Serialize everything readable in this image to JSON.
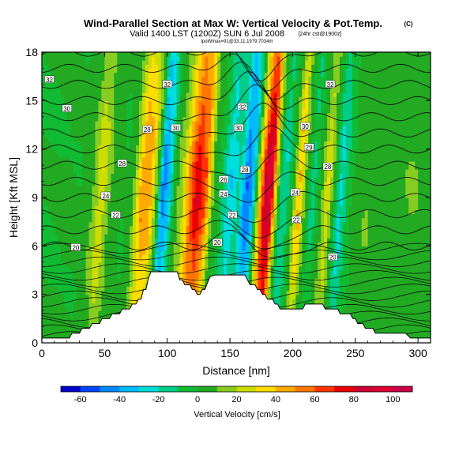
{
  "chart_data": {
    "type": "heatmap",
    "title": "Wind-Parallel Section at Max W: Vertical Velocity & Pot.Temp.",
    "title_mark": "(C)",
    "subtitle": "Valid 1400 LST (1200Z) SUN 6 Jul 2008",
    "subtitle_note": "[24hr cst@1900z]",
    "subtitle2": "lpoWmax=91@33.11,1979.7034m",
    "xlabel": "Distance [nm]",
    "ylabel": "Height [Kft MSL]",
    "xlim": [
      0,
      310
    ],
    "ylim": [
      0,
      18
    ],
    "x_ticks": [
      0,
      50,
      100,
      150,
      200,
      250,
      300
    ],
    "y_ticks": [
      0,
      3,
      6,
      9,
      12,
      15,
      18
    ],
    "grid": false,
    "colorbar": {
      "label": "Vertical Velocity [cm/s]",
      "placement": "bottom",
      "ticks": [
        -60,
        -40,
        -20,
        0,
        20,
        40,
        60,
        80,
        100
      ],
      "min": -70,
      "max": 110,
      "step": 10,
      "colors": [
        "#0000cc",
        "#0044ff",
        "#0088ff",
        "#00bbff",
        "#00dddd",
        "#00cc88",
        "#11bb33",
        "#22aa22",
        "#88cc22",
        "#ccdd00",
        "#ffdd00",
        "#ffaa00",
        "#ff7700",
        "#ff3300",
        "#ee0000",
        "#cc0033",
        "#dd0033",
        "#cc0044"
      ]
    },
    "columns": [
      {
        "x": 0,
        "w": 0
      },
      {
        "x": 10,
        "w": 0
      },
      {
        "x": 20,
        "w": 2
      },
      {
        "x": 30,
        "w": 1
      },
      {
        "x": 40,
        "w": 10
      },
      {
        "x": 47,
        "w": 30
      },
      {
        "x": 55,
        "w": 8
      },
      {
        "x": 65,
        "w": 0
      },
      {
        "x": 72,
        "w": 5
      },
      {
        "x": 80,
        "w": 50
      },
      {
        "x": 86,
        "w": 45
      },
      {
        "x": 92,
        "w": 5
      },
      {
        "x": 96,
        "w": -45
      },
      {
        "x": 101,
        "w": -30
      },
      {
        "x": 106,
        "w": 5
      },
      {
        "x": 112,
        "w": 20
      },
      {
        "x": 118,
        "w": 55
      },
      {
        "x": 124,
        "w": 80
      },
      {
        "x": 130,
        "w": 60
      },
      {
        "x": 136,
        "w": 10
      },
      {
        "x": 142,
        "w": -5
      },
      {
        "x": 150,
        "w": -30
      },
      {
        "x": 157,
        "w": -15
      },
      {
        "x": 163,
        "w": -50
      },
      {
        "x": 168,
        "w": -35
      },
      {
        "x": 173,
        "w": 30
      },
      {
        "x": 178,
        "w": 85
      },
      {
        "x": 182,
        "w": 100
      },
      {
        "x": 186,
        "w": 30
      },
      {
        "x": 190,
        "w": -10
      },
      {
        "x": 194,
        "w": -20
      },
      {
        "x": 200,
        "w": 5
      },
      {
        "x": 205,
        "w": 45
      },
      {
        "x": 210,
        "w": 10
      },
      {
        "x": 216,
        "w": -15
      },
      {
        "x": 222,
        "w": 5
      },
      {
        "x": 228,
        "w": 30
      },
      {
        "x": 234,
        "w": -5
      },
      {
        "x": 238,
        "w": -25
      },
      {
        "x": 243,
        "w": -10
      },
      {
        "x": 250,
        "w": 5
      },
      {
        "x": 260,
        "w": 10
      },
      {
        "x": 270,
        "w": 5
      },
      {
        "x": 280,
        "w": 5
      },
      {
        "x": 295,
        "w": 10
      },
      {
        "x": 310,
        "w": 5
      }
    ],
    "terrain": [
      [
        0,
        0.3
      ],
      [
        22,
        0.3
      ],
      [
        24,
        0.6
      ],
      [
        30,
        0.6
      ],
      [
        32,
        0.9
      ],
      [
        38,
        0.9
      ],
      [
        40,
        1.2
      ],
      [
        46,
        1.2
      ],
      [
        48,
        1.5
      ],
      [
        54,
        1.5
      ],
      [
        56,
        1.8
      ],
      [
        62,
        1.8
      ],
      [
        64,
        2.1
      ],
      [
        70,
        2.1
      ],
      [
        72,
        2.4
      ],
      [
        75,
        2.4
      ],
      [
        77,
        2.7
      ],
      [
        79,
        2.7
      ],
      [
        81,
        3.3
      ],
      [
        83,
        3.3
      ],
      [
        85,
        4.0
      ],
      [
        87,
        4.4
      ],
      [
        108,
        4.4
      ],
      [
        110,
        3.9
      ],
      [
        112,
        3.9
      ],
      [
        114,
        3.6
      ],
      [
        118,
        3.6
      ],
      [
        120,
        3.3
      ],
      [
        122,
        3.3
      ],
      [
        124,
        3.0
      ],
      [
        126,
        3.0
      ],
      [
        128,
        3.3
      ],
      [
        130,
        3.3
      ],
      [
        134,
        4.1
      ],
      [
        138,
        4.2
      ],
      [
        162,
        4.2
      ],
      [
        166,
        3.6
      ],
      [
        170,
        3.6
      ],
      [
        172,
        3.3
      ],
      [
        174,
        3.3
      ],
      [
        176,
        3.0
      ],
      [
        178,
        3.0
      ],
      [
        180,
        2.7
      ],
      [
        184,
        2.7
      ],
      [
        186,
        2.4
      ],
      [
        188,
        2.4
      ],
      [
        190,
        2.1
      ],
      [
        208,
        2.1
      ],
      [
        210,
        2.4
      ],
      [
        224,
        2.4
      ],
      [
        226,
        2.1
      ],
      [
        236,
        2.1
      ],
      [
        238,
        1.8
      ],
      [
        246,
        1.8
      ],
      [
        248,
        1.5
      ],
      [
        250,
        1.5
      ],
      [
        252,
        1.2
      ],
      [
        256,
        1.2
      ],
      [
        258,
        0.9
      ],
      [
        264,
        0.9
      ],
      [
        266,
        0.6
      ],
      [
        290,
        0.6
      ],
      [
        294,
        0.3
      ],
      [
        310,
        0.3
      ]
    ],
    "isentropes_theta": [
      20,
      21,
      22,
      23,
      24,
      25,
      26,
      27,
      28,
      29,
      30,
      31,
      32
    ],
    "isentrope_labels": [
      {
        "text": "32",
        "x": 6,
        "y": 16.3
      },
      {
        "text": "30",
        "x": 20,
        "y": 14.5
      },
      {
        "text": "28",
        "x": 84,
        "y": 13.2
      },
      {
        "text": "30",
        "x": 107,
        "y": 13.3
      },
      {
        "text": "32",
        "x": 100,
        "y": 16.0
      },
      {
        "text": "32",
        "x": 160,
        "y": 14.6
      },
      {
        "text": "30",
        "x": 157,
        "y": 13.3
      },
      {
        "text": "28",
        "x": 162,
        "y": 10.7
      },
      {
        "text": "26",
        "x": 145,
        "y": 10.1
      },
      {
        "text": "24",
        "x": 145,
        "y": 9.2
      },
      {
        "text": "22",
        "x": 152,
        "y": 7.9
      },
      {
        "text": "20",
        "x": 140,
        "y": 6.2
      },
      {
        "text": "28",
        "x": 64,
        "y": 11.1
      },
      {
        "text": "24",
        "x": 51,
        "y": 9.1
      },
      {
        "text": "22",
        "x": 59,
        "y": 7.9
      },
      {
        "text": "20",
        "x": 27,
        "y": 5.9
      },
      {
        "text": "32",
        "x": 230,
        "y": 16.0
      },
      {
        "text": "30",
        "x": 210,
        "y": 13.4
      },
      {
        "text": "29",
        "x": 213,
        "y": 12.1
      },
      {
        "text": "28",
        "x": 228,
        "y": 10.9
      },
      {
        "text": "24",
        "x": 202,
        "y": 9.3
      },
      {
        "text": "22",
        "x": 203,
        "y": 7.6
      },
      {
        "text": "20",
        "x": 232,
        "y": 5.3
      }
    ]
  }
}
